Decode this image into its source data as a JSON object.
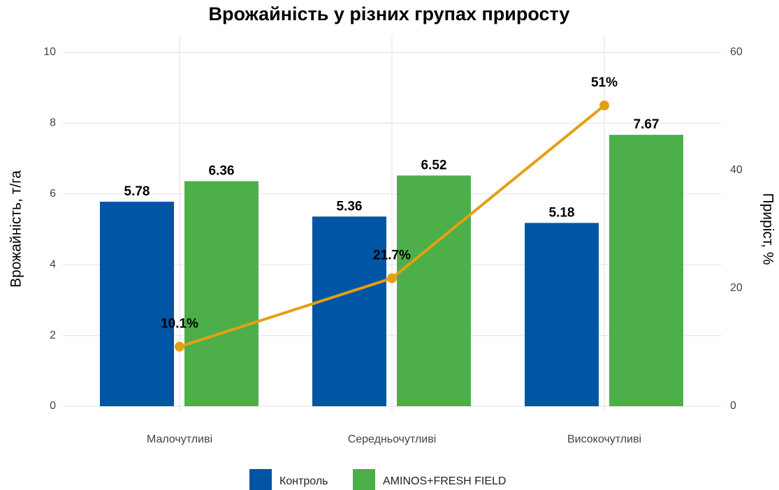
{
  "chart_data": {
    "type": "bar",
    "title": "Врожайність у різних групах приросту",
    "y_label": "Врожайність, т/га",
    "y2_label": "Приріст, %",
    "categories": [
      "Малочутливі",
      "Середньочутливі",
      "Високочутливі"
    ],
    "series": [
      {
        "name": "Контроль",
        "color": "#0055a4",
        "values": [
          5.78,
          5.36,
          5.18
        ]
      },
      {
        "name": "AMINOS+FRESH FIELD",
        "color": "#4caf4a",
        "values": [
          6.36,
          6.52,
          7.67
        ]
      }
    ],
    "line": {
      "type": "line",
      "axis": "y2",
      "color": "#e3a012",
      "values": [
        10.1,
        21.7,
        51
      ],
      "value_labels": [
        "10.1%",
        "21.7%",
        "51%"
      ]
    },
    "ylim": [
      0,
      10
    ],
    "yticks": [
      0,
      2,
      4,
      6,
      8,
      10
    ],
    "y2lim": [
      0,
      60
    ],
    "y2ticks": [
      0,
      20,
      40,
      60
    ],
    "grid": true,
    "legend": "bottom"
  }
}
